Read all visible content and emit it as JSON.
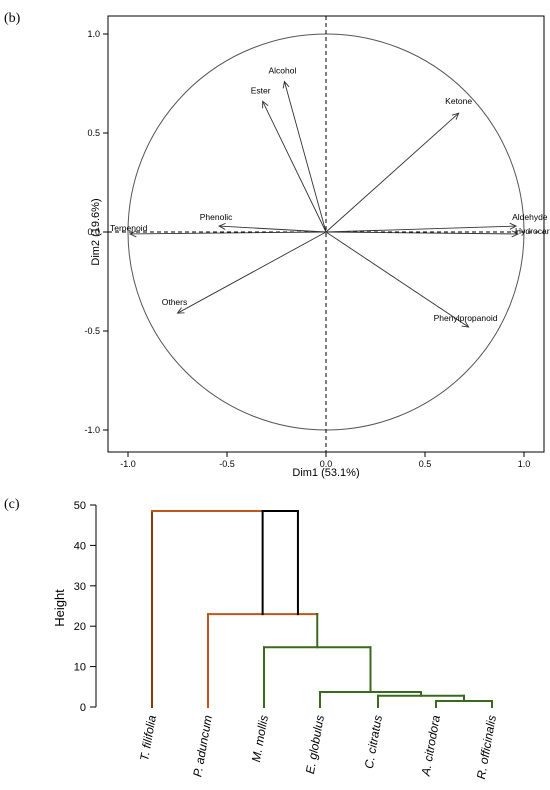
{
  "panel_b": {
    "label": "(b)",
    "chart_data": {
      "type": "scatter",
      "subtype": "pca-variable-correlation-circle",
      "xlabel": "Dim1 (53.1%)",
      "ylabel": "Dim2 (19.6%)",
      "xlim": [
        -1.1,
        1.1
      ],
      "ylim": [
        -1.05,
        1.05
      ],
      "xticks": [
        "-1.0",
        "-0.5",
        "0.0",
        "0.5",
        "1.0"
      ],
      "yticks": [
        "-1.0",
        "-0.5",
        "0.0",
        "0.5",
        "1.0"
      ],
      "reference_lines": "dashed lines at x = 0 and y = 0",
      "circle_radius": 1,
      "variables": [
        {
          "name": "Alcohol",
          "x": -0.21,
          "y": 0.76
        },
        {
          "name": "Ester",
          "x": -0.32,
          "y": 0.66
        },
        {
          "name": "Ketone",
          "x": 0.67,
          "y": 0.6
        },
        {
          "name": "Phenolic",
          "x": -0.54,
          "y": 0.03
        },
        {
          "name": "Terpenoid",
          "x": -0.99,
          "y": -0.01
        },
        {
          "name": "Aldehyde",
          "x": 0.96,
          "y": 0.03
        },
        {
          "name": "Hydrocarbon",
          "x": 0.97,
          "y": -0.01
        },
        {
          "name": "Others",
          "x": -0.75,
          "y": -0.41
        },
        {
          "name": "Phenylpropanoid",
          "x": 0.72,
          "y": -0.48
        }
      ]
    }
  },
  "panel_c": {
    "label": "(c)",
    "chart_data": {
      "type": "dendrogram",
      "ylabel": "Height",
      "ylim": [
        0,
        50
      ],
      "yticks": [
        "0",
        "10",
        "20",
        "30",
        "40",
        "50"
      ],
      "leaves": [
        "T. filifolia",
        "P. aduncum",
        "M. mollis",
        "E. globulus",
        "C. citratus",
        "A. citrodora",
        "R. officinalis"
      ],
      "merges": [
        {
          "left": "A. citrodora",
          "right": "R. officinalis",
          "height": 1.5,
          "color": "#3a6a1e"
        },
        {
          "left": "C. citratus",
          "right": "A. citrodora + R. officinalis",
          "height": 2.8,
          "color": "#3a6a1e"
        },
        {
          "left": "E. globulus",
          "right": "C. citratus + A. citrodora + R. officinalis",
          "height": 3.7,
          "color": "#3a6a1e"
        },
        {
          "left": "M. mollis",
          "right": "E. globulus + C. citratus + A. citrodora + R. officinalis",
          "height": 14.8,
          "color": "#3a6a1e"
        },
        {
          "left": "P. aduncum",
          "right": "M. mollis + E. globulus + C. citratus + A. citrodora + R. officinalis",
          "height": 23,
          "color": "#c0561b"
        },
        {
          "left": "T. filifolia",
          "right": "all others",
          "height": 48.5,
          "color": "#000000"
        }
      ],
      "cluster_colors": {
        "T. filifolia": "#8a3a12",
        "P. aduncum": "#c0561b",
        "green_group": "#3a6a1e"
      }
    }
  }
}
